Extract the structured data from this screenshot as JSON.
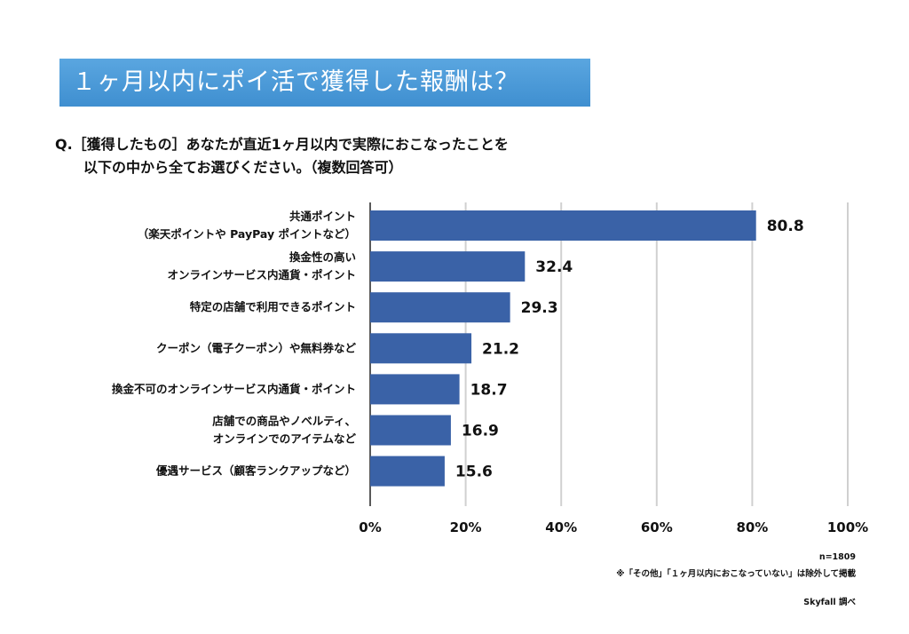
{
  "title": "１ヶ月以内にポイ活で獲得した報酬は？",
  "question": {
    "line1": "Q.［獲得したもの］あなたが直近1ヶ月以内で実際におこなったことを",
    "line2": "以下の中から全てお選びください。（複数回答可）"
  },
  "chart_data": {
    "type": "bar",
    "orientation": "horizontal",
    "categories": [
      [
        "共通ポイント",
        "（楽天ポイントや PayPay ポイントなど）"
      ],
      [
        "換金性の高い",
        "オンラインサービス内通貨・ポイント"
      ],
      [
        "特定の店舗で利用できるポイント"
      ],
      [
        "クーポン（電子クーポン）や無料券など"
      ],
      [
        "換金不可のオンラインサービス内通貨・ポイント"
      ],
      [
        "店舗での商品やノベルティ、",
        "オンラインでのアイテムなど"
      ],
      [
        "優遇サービス（顧客ランクアップなど）"
      ]
    ],
    "values": [
      80.8,
      32.4,
      29.3,
      21.2,
      18.7,
      16.9,
      15.6
    ],
    "value_labels": [
      "80.8",
      "32.4",
      "29.3",
      "21.2",
      "18.7",
      "16.9",
      "15.6"
    ],
    "xlim": [
      0,
      100
    ],
    "x_ticks": [
      "0%",
      "20%",
      "40%",
      "60%",
      "80%",
      "100%"
    ],
    "grid": true,
    "bar_color": "#3a62a7"
  },
  "notes": {
    "n": "n=1809",
    "exclusion": "※「その他」「１ヶ月以内におこなっていない」は除外して掲載",
    "source": "Skyfall 調べ"
  }
}
